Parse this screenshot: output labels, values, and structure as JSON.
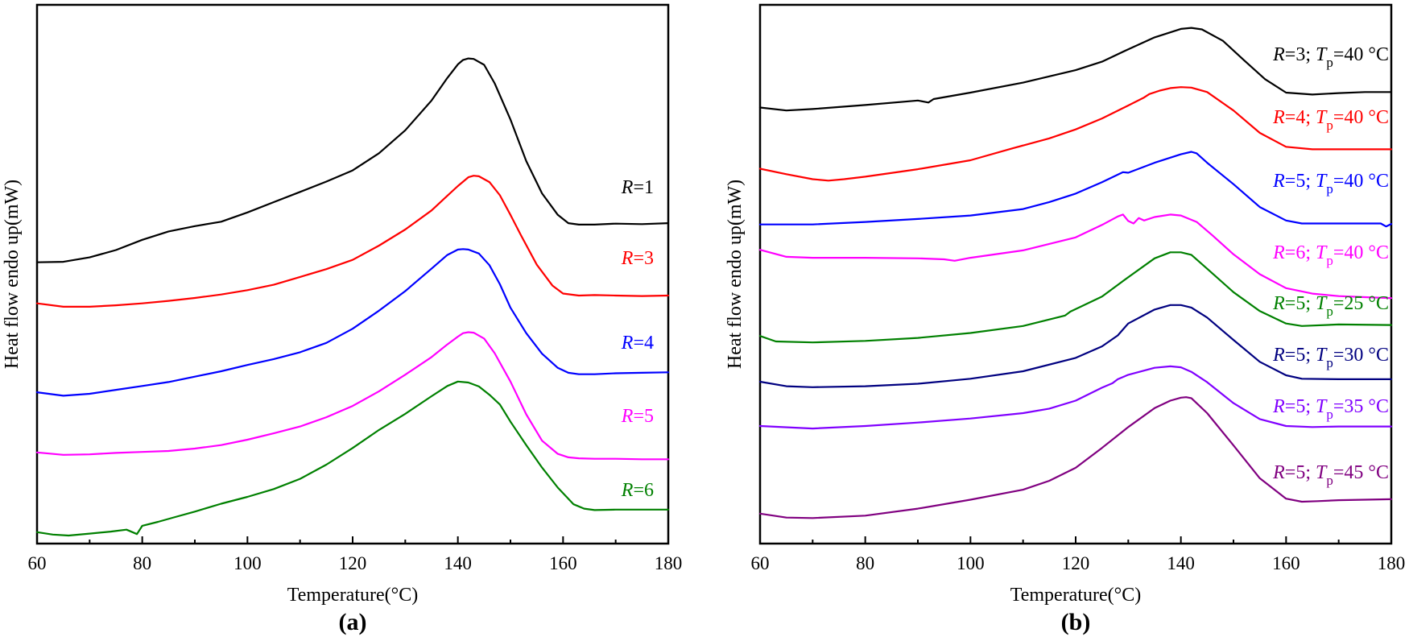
{
  "chart_data": [
    {
      "type": "line",
      "panel_label": "(a)",
      "xlabel": "Temperature(°C)",
      "ylabel": "Heat flow endo up(mW)",
      "xlim": [
        60,
        180
      ],
      "ylim": [
        0,
        100
      ],
      "xticks": [
        60,
        80,
        100,
        120,
        140,
        160,
        180
      ],
      "xtick_labels": [
        "60",
        "80",
        "100",
        "120",
        "140",
        "160",
        "180"
      ],
      "ytick_labels_shown": false,
      "legend_placement": "inline-right",
      "series": [
        {
          "name": "R=1",
          "label_var": "R",
          "label_rest": "=1",
          "color": "#000000",
          "x": [
            60,
            65,
            70,
            75,
            80,
            85,
            90,
            95,
            100,
            105,
            110,
            115,
            120,
            125,
            130,
            135,
            138,
            140,
            141,
            142,
            143,
            145,
            147,
            150,
            153,
            156,
            159,
            161,
            163,
            166,
            170,
            175,
            180
          ],
          "y": [
            55.9,
            56.0,
            56.9,
            58.4,
            60.5,
            62.2,
            63.3,
            64.2,
            66.1,
            68.2,
            70.3,
            72.4,
            74.7,
            78.2,
            82.9,
            89.0,
            93.6,
            96.4,
            97.3,
            97.6,
            97.5,
            96.3,
            92.5,
            85.1,
            76.6,
            70.0,
            65.6,
            63.9,
            63.6,
            63.6,
            63.8,
            63.7,
            63.9
          ]
        },
        {
          "name": "R=3",
          "label_var": "R",
          "label_rest": "=3",
          "color": "#ff0000",
          "x": [
            60,
            65,
            70,
            75,
            80,
            85,
            90,
            95,
            100,
            105,
            110,
            115,
            120,
            125,
            130,
            135,
            138,
            140,
            142,
            143,
            144,
            146,
            148,
            150,
            152,
            155,
            158,
            160,
            163,
            166,
            170,
            175,
            180
          ],
          "y": [
            47.5,
            46.8,
            46.8,
            47.1,
            47.5,
            48.0,
            48.6,
            49.3,
            50.2,
            51.3,
            52.9,
            54.5,
            56.4,
            59.3,
            62.6,
            66.5,
            69.5,
            71.5,
            73.3,
            73.6,
            73.5,
            72.3,
            69.6,
            65.6,
            61.4,
            55.4,
            51.1,
            49.5,
            49.1,
            49.2,
            49.1,
            49.0,
            49.1
          ]
        },
        {
          "name": "R=4",
          "label_var": "R",
          "label_rest": "=4",
          "color": "#0000ff",
          "x": [
            60,
            65,
            70,
            75,
            80,
            85,
            90,
            95,
            100,
            105,
            110,
            115,
            120,
            125,
            130,
            135,
            138,
            140,
            141,
            142,
            144,
            146,
            148,
            150,
            153,
            156,
            159,
            161,
            163,
            166,
            170,
            175,
            180
          ],
          "y": [
            29.3,
            28.6,
            29.0,
            29.8,
            30.6,
            31.4,
            32.5,
            33.6,
            34.9,
            36.1,
            37.5,
            39.4,
            42.3,
            46.0,
            50.0,
            54.6,
            57.4,
            58.5,
            58.6,
            58.5,
            57.7,
            55.3,
            51.4,
            46.6,
            41.4,
            37.2,
            34.3,
            33.3,
            33.0,
            33.0,
            33.2,
            33.3,
            33.4
          ]
        },
        {
          "name": "R=5",
          "label_var": "R",
          "label_rest": "=5",
          "color": "#ff00ff",
          "x": [
            60,
            65,
            70,
            75,
            80,
            85,
            90,
            95,
            100,
            105,
            110,
            115,
            120,
            125,
            130,
            135,
            138,
            140,
            141,
            142,
            143,
            145,
            147,
            150,
            153,
            156,
            159,
            161,
            163,
            166,
            170,
            175,
            180
          ],
          "y": [
            17.0,
            16.5,
            16.6,
            16.9,
            17.1,
            17.3,
            17.8,
            18.5,
            19.6,
            20.9,
            22.3,
            24.2,
            26.5,
            29.5,
            32.9,
            36.5,
            39.1,
            40.7,
            41.4,
            41.6,
            41.5,
            40.3,
            37.3,
            31.5,
            24.8,
            19.4,
            16.7,
            16.0,
            15.8,
            15.7,
            15.7,
            15.6,
            15.6
          ]
        },
        {
          "name": "R=6",
          "label_var": "R",
          "label_rest": "=6",
          "color": "#008000",
          "x": [
            60,
            63,
            66,
            70,
            74,
            77,
            79,
            80,
            83,
            86,
            90,
            95,
            100,
            105,
            110,
            115,
            120,
            125,
            130,
            135,
            138,
            140,
            142,
            144,
            146,
            148,
            150,
            153,
            156,
            159,
            162,
            164,
            166,
            170,
            175,
            180
          ],
          "y": [
            0.7,
            0.2,
            0.0,
            0.4,
            0.8,
            1.2,
            0.3,
            2.0,
            2.8,
            3.7,
            4.9,
            6.5,
            7.9,
            9.5,
            11.6,
            14.5,
            17.9,
            21.6,
            24.9,
            28.5,
            30.6,
            31.5,
            31.3,
            30.5,
            28.8,
            26.8,
            23.3,
            18.5,
            13.9,
            9.8,
            6.4,
            5.5,
            5.2,
            5.3,
            5.3,
            5.3
          ]
        }
      ],
      "annotations": [
        "R=1",
        "R=3",
        "R=4",
        "R=5",
        "R=6"
      ]
    },
    {
      "type": "line",
      "panel_label": "(b)",
      "xlabel": "Temperature(°C)",
      "ylabel": "Heat flow endo up(mW)",
      "xlim": [
        60,
        180
      ],
      "ylim": [
        0,
        100
      ],
      "xticks": [
        60,
        80,
        100,
        120,
        140,
        160,
        180
      ],
      "xtick_labels": [
        "60",
        "80",
        "100",
        "120",
        "140",
        "160",
        "180"
      ],
      "ytick_labels_shown": false,
      "legend_placement": "inline-right",
      "series": [
        {
          "name": "R=3; Tp=40 °C",
          "label_var": "R",
          "label_mid": "=3; ",
          "label_var2": "T",
          "label_sub": "p",
          "label_rest": "=40 °C",
          "color": "#000000",
          "x": [
            60,
            65,
            70,
            80,
            90,
            92,
            93,
            100,
            110,
            120,
            125,
            130,
            135,
            140,
            142,
            144,
            148,
            152,
            156,
            160,
            165,
            170,
            175,
            180
          ],
          "y": [
            83.9,
            83.3,
            83.6,
            84.4,
            85.3,
            84.9,
            85.6,
            86.9,
            88.9,
            91.4,
            93.1,
            95.6,
            98.0,
            99.7,
            99.9,
            99.6,
            97.3,
            93.4,
            89.6,
            86.9,
            86.5,
            86.8,
            87.0,
            87.0
          ]
        },
        {
          "name": "R=4; Tp=40 °C",
          "label_var": "R",
          "label_mid": "=4; ",
          "label_var2": "T",
          "label_sub": "p",
          "label_rest": "=40 °C",
          "color": "#ff0000",
          "x": [
            60,
            65,
            70,
            73,
            76,
            80,
            90,
            100,
            108,
            115,
            120,
            125,
            130,
            133,
            134,
            136,
            138,
            140,
            142,
            145,
            150,
            155,
            160,
            165,
            170,
            180
          ],
          "y": [
            71.6,
            70.5,
            69.5,
            69.2,
            69.5,
            70.0,
            71.5,
            73.3,
            75.7,
            77.7,
            79.5,
            81.7,
            84.3,
            85.9,
            86.6,
            87.3,
            87.8,
            88.0,
            87.9,
            87.0,
            83.3,
            78.8,
            76.0,
            75.5,
            75.5,
            75.5
          ]
        },
        {
          "name": "R=5; Tp=40 °C",
          "label_var": "R",
          "label_mid": "=5; ",
          "label_var2": "T",
          "label_sub": "p",
          "label_rest": "=40 °C",
          "color": "#0000ff",
          "x": [
            60,
            70,
            80,
            90,
            100,
            110,
            115,
            120,
            125,
            129,
            130,
            135,
            140,
            142,
            143,
            145,
            150,
            155,
            160,
            163,
            168,
            175,
            178,
            179,
            180
          ],
          "y": [
            60.4,
            60.4,
            60.9,
            61.5,
            62.2,
            63.5,
            64.9,
            66.6,
            68.9,
            70.9,
            70.8,
            72.8,
            74.5,
            75.0,
            74.7,
            72.8,
            68.5,
            63.9,
            61.2,
            60.6,
            60.6,
            60.6,
            60.6,
            60.0,
            60.5
          ]
        },
        {
          "name": "R=6; Tp=40 °C",
          "label_var": "R",
          "label_mid": "=6; ",
          "label_var2": "T",
          "label_sub": "p",
          "label_rest": "=40 °C",
          "color": "#ff00ff",
          "x": [
            60,
            65,
            70,
            80,
            90,
            95,
            97,
            100,
            110,
            120,
            125,
            128,
            129,
            130,
            131,
            132,
            133,
            135,
            138,
            140,
            143,
            146,
            150,
            155,
            160,
            165,
            170,
            175,
            180
          ],
          "y": [
            55.3,
            53.9,
            53.7,
            53.7,
            53.6,
            53.4,
            53.1,
            53.7,
            55.2,
            57.8,
            60.3,
            62.0,
            62.4,
            61.1,
            60.6,
            61.7,
            61.2,
            61.9,
            62.4,
            62.2,
            60.9,
            58.2,
            54.4,
            50.4,
            47.6,
            46.5,
            46.0,
            45.8,
            45.6
          ]
        },
        {
          "name": "R=5; Tp=25 °C",
          "label_var": "R",
          "label_mid": "=5; ",
          "label_var2": "T",
          "label_sub": "p",
          "label_rest": "=25 °C",
          "color": "#008000",
          "x": [
            60,
            63,
            70,
            80,
            90,
            100,
            110,
            118,
            119,
            125,
            130,
            135,
            138,
            140,
            142,
            145,
            150,
            155,
            160,
            163,
            170,
            180
          ],
          "y": [
            38.0,
            36.9,
            36.7,
            37.0,
            37.6,
            38.6,
            40.0,
            42.1,
            42.9,
            45.9,
            49.8,
            53.6,
            54.8,
            54.8,
            54.3,
            51.5,
            46.8,
            43.0,
            40.5,
            40.0,
            40.3,
            40.2
          ]
        },
        {
          "name": "R=5; Tp=30 °C",
          "label_var": "R",
          "label_mid": "=5; ",
          "label_var2": "T",
          "label_sub": "p",
          "label_rest": "=30 °C",
          "color": "#000080",
          "x": [
            60,
            65,
            70,
            80,
            90,
            100,
            110,
            120,
            125,
            128,
            130,
            135,
            138,
            140,
            142,
            145,
            150,
            155,
            160,
            163,
            170,
            180
          ],
          "y": [
            28.8,
            27.9,
            27.7,
            27.9,
            28.4,
            29.4,
            30.9,
            33.6,
            35.9,
            38.1,
            40.5,
            43.3,
            44.2,
            44.2,
            43.7,
            41.7,
            37.2,
            32.8,
            30.1,
            29.4,
            29.3,
            29.3
          ]
        },
        {
          "name": "R=5; Tp=35 °C",
          "label_var": "R",
          "label_mid": "=5; ",
          "label_var2": "T",
          "label_sub": "p",
          "label_rest": "=35 °C",
          "color": "#8000ff",
          "x": [
            60,
            70,
            80,
            90,
            100,
            110,
            115,
            120,
            125,
            127,
            128,
            130,
            135,
            138,
            140,
            142,
            145,
            150,
            155,
            160,
            165,
            170,
            180
          ],
          "y": [
            19.9,
            19.4,
            19.9,
            20.6,
            21.4,
            22.5,
            23.4,
            25.0,
            27.6,
            28.5,
            29.3,
            30.2,
            31.6,
            31.9,
            31.7,
            30.8,
            28.7,
            24.5,
            21.3,
            19.9,
            19.7,
            19.8,
            19.8
          ]
        },
        {
          "name": "R=5; Tp=45 °C",
          "label_var": "R",
          "label_mid": "=5; ",
          "label_var2": "T",
          "label_sub": "p",
          "label_rest": "=45 °C",
          "color": "#800080",
          "x": [
            60,
            65,
            70,
            80,
            90,
            100,
            110,
            115,
            120,
            125,
            130,
            135,
            138,
            140,
            141,
            142,
            145,
            150,
            155,
            160,
            163,
            166,
            170,
            180
          ],
          "y": [
            2.3,
            1.5,
            1.4,
            1.9,
            3.3,
            5.1,
            7.1,
            8.9,
            11.5,
            15.5,
            19.7,
            23.5,
            25.0,
            25.6,
            25.7,
            25.5,
            22.5,
            16.0,
            9.4,
            5.3,
            4.7,
            4.8,
            5.0,
            5.2
          ]
        }
      ],
      "annotations": [
        "R=3; Tp=40 °C",
        "R=4; Tp=40 °C",
        "R=5; Tp=40 °C",
        "R=6; Tp=40 °C",
        "R=5; Tp=25 °C",
        "R=5; Tp=30 °C",
        "R=5; Tp=35 °C",
        "R=5; Tp=45 °C"
      ]
    }
  ]
}
